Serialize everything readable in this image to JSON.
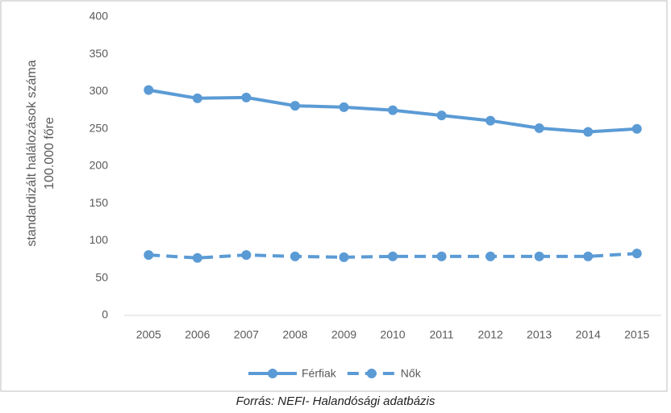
{
  "chart_data": {
    "type": "line",
    "ylabel": [
      "standardizált halálozások száma",
      "100.000 főre"
    ],
    "caption": "Forrás: NEFI- Halandósági adatbázis",
    "categories": [
      "2005",
      "2006",
      "2007",
      "2008",
      "2009",
      "2010",
      "2011",
      "2012",
      "2013",
      "2014",
      "2015"
    ],
    "series": [
      {
        "name": "Férfiak",
        "color": "#5b9bd5",
        "linestyle": "solid",
        "values": [
          302,
          291,
          292,
          281,
          279,
          275,
          268,
          261,
          251,
          246,
          250
        ]
      },
      {
        "name": "Nők",
        "color": "#5b9bd5",
        "linestyle": "dashed",
        "values": [
          81,
          77,
          81,
          79,
          78,
          79,
          79,
          79,
          79,
          79,
          83
        ]
      }
    ],
    "ylim": [
      0,
      400
    ],
    "yticks": [
      0,
      50,
      100,
      150,
      200,
      250,
      300,
      350,
      400
    ],
    "grid": false,
    "legend": "bottom"
  }
}
